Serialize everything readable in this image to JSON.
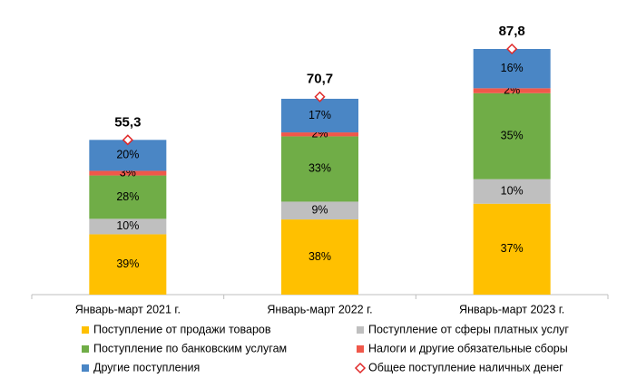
{
  "chart_data": {
    "type": "stacked-bar",
    "categories": [
      "Январь-март 2021 г.",
      "Январь-март 2022 г.",
      "Январь-март 2023 г."
    ],
    "series": [
      {
        "name": "Поступление от продажи товаров",
        "color": "#ffc000",
        "values": [
          39,
          38,
          37
        ],
        "value_labels": [
          "39%",
          "38%",
          "37%"
        ]
      },
      {
        "name": "Поступление от сферы платных услуг",
        "color": "#bfbfbf",
        "values": [
          10,
          9,
          10
        ],
        "value_labels": [
          "10%",
          "9%",
          "10%"
        ]
      },
      {
        "name": "Поступление по банковским услугам",
        "color": "#70ad47",
        "values": [
          28,
          33,
          35
        ],
        "value_labels": [
          "28%",
          "33%",
          "35%"
        ]
      },
      {
        "name": "Налоги и другие обязательные сборы",
        "color": "#f0584a",
        "values": [
          3,
          2,
          2
        ],
        "value_labels": [
          "3%",
          "2%",
          "2%"
        ]
      },
      {
        "name": "Другие поступления",
        "color": "#4a86c5",
        "values": [
          20,
          17,
          16
        ],
        "value_labels": [
          "20%",
          "17%",
          "16%"
        ]
      }
    ],
    "total": {
      "name": "Общее поступление наличных денег",
      "color": "#e02828",
      "marker": "diamond",
      "values": [
        55.3,
        70.7,
        87.8
      ],
      "value_labels": [
        "55,3",
        "70,7",
        "87,8"
      ]
    }
  }
}
